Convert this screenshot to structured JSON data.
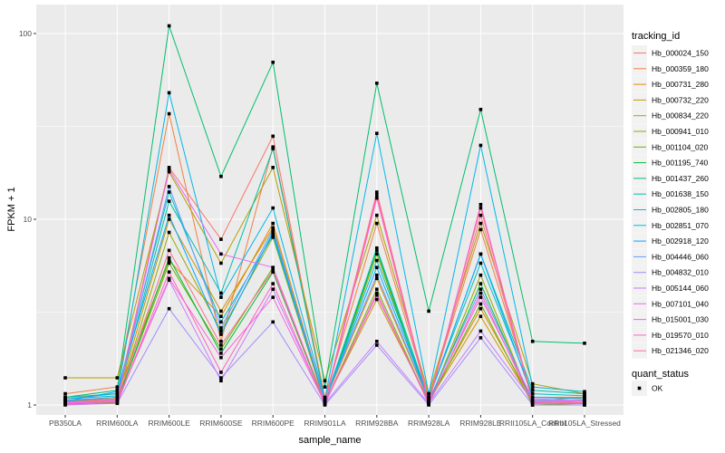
{
  "chart_data": {
    "type": "line",
    "title": "",
    "xlabel": "sample_name",
    "ylabel": "FPKM + 1",
    "y_scale": "log10",
    "ylim": [
      0.85,
      120
    ],
    "y_ticks": [
      1,
      10,
      100
    ],
    "y_tick_labels": [
      "1",
      "10",
      "100"
    ],
    "grid": true,
    "categories": [
      "PB350LA",
      "RRIM600LA",
      "RRIM600LE",
      "RRIM600SE",
      "RRIM600PE",
      "RRIM901LA",
      "RRIM928BA",
      "RRIM928LA",
      "RRIM928LE",
      "RRII105LA_Control",
      "RRII105LA_Stressed"
    ],
    "legend": {
      "title": "tracking_id",
      "placement": "right",
      "shape_legend_title": "quant_status",
      "shape_legend_entries": [
        "OK"
      ]
    },
    "series": [
      {
        "name": "Hb_000024_150",
        "color": "#F8766D",
        "values": [
          1.05,
          1.1,
          19.0,
          7.8,
          28.0,
          1.05,
          13.5,
          1.05,
          11.5,
          1.05,
          1.05
        ]
      },
      {
        "name": "Hb_000359_180",
        "color": "#F07F44",
        "values": [
          1.15,
          1.25,
          37.0,
          2.2,
          24.5,
          1.1,
          9.5,
          1.1,
          8.8,
          1.1,
          1.1
        ]
      },
      {
        "name": "Hb_000731_280",
        "color": "#E18A00",
        "values": [
          1.08,
          1.15,
          6.0,
          3.0,
          9.5,
          1.05,
          4.8,
          1.05,
          3.3,
          1.05,
          1.1
        ]
      },
      {
        "name": "Hb_000732_220",
        "color": "#CC9600",
        "values": [
          1.05,
          1.08,
          10.0,
          3.2,
          9.0,
          1.03,
          3.7,
          1.05,
          3.0,
          1.03,
          1.05
        ]
      },
      {
        "name": "Hb_000834_220",
        "color": "#B39E00",
        "values": [
          1.4,
          1.4,
          18.0,
          5.8,
          19.0,
          1.35,
          10.5,
          1.15,
          9.5,
          1.3,
          1.15
        ]
      },
      {
        "name": "Hb_000941_010",
        "color": "#95A900",
        "values": [
          1.02,
          1.03,
          8.5,
          2.5,
          8.0,
          1.02,
          6.5,
          1.02,
          5.0,
          1.0,
          1.0
        ]
      },
      {
        "name": "Hb_001104_020",
        "color": "#6BB100",
        "values": [
          1.03,
          1.05,
          5.8,
          2.0,
          5.5,
          1.02,
          4.2,
          1.02,
          3.5,
          1.0,
          1.02
        ]
      },
      {
        "name": "Hb_001195_740",
        "color": "#00BA38",
        "values": [
          1.02,
          1.04,
          6.2,
          1.9,
          5.2,
          1.02,
          6.8,
          1.03,
          4.5,
          1.02,
          1.02
        ]
      },
      {
        "name": "Hb_001437_260",
        "color": "#00BE6C",
        "values": [
          1.1,
          1.2,
          110.0,
          17.0,
          70.0,
          1.25,
          54.0,
          3.2,
          39.0,
          2.2,
          2.15
        ]
      },
      {
        "name": "Hb_001638_150",
        "color": "#00C0AB",
        "values": [
          1.05,
          1.1,
          12.5,
          4.0,
          24.0,
          1.05,
          7.0,
          1.08,
          6.5,
          1.2,
          1.15
        ]
      },
      {
        "name": "Hb_002805_180",
        "color": "#00BFC4",
        "values": [
          1.1,
          1.15,
          14.0,
          2.8,
          8.2,
          1.05,
          6.0,
          1.1,
          5.8,
          1.15,
          1.12
        ]
      },
      {
        "name": "Hb_002851_070",
        "color": "#00B8E7",
        "values": [
          1.08,
          1.12,
          48.0,
          3.8,
          11.5,
          1.08,
          29.0,
          1.15,
          25.0,
          1.25,
          1.18
        ]
      },
      {
        "name": "Hb_002918_120",
        "color": "#00A9FF",
        "values": [
          1.05,
          1.18,
          10.5,
          2.4,
          8.5,
          1.05,
          5.5,
          1.08,
          6.5,
          1.1,
          1.08
        ]
      },
      {
        "name": "Hb_004446_060",
        "color": "#619CFF",
        "values": [
          1.06,
          1.1,
          15.0,
          2.6,
          8.8,
          1.06,
          5.0,
          1.06,
          4.2,
          1.06,
          1.06
        ]
      },
      {
        "name": "Hb_004832_010",
        "color": "#A58AFF",
        "values": [
          1.0,
          1.02,
          3.3,
          1.4,
          2.8,
          1.0,
          2.1,
          1.0,
          2.3,
          1.0,
          1.0
        ]
      },
      {
        "name": "Hb_005144_060",
        "color": "#C77CFF",
        "values": [
          1.02,
          1.05,
          4.7,
          1.35,
          4.2,
          1.02,
          2.2,
          1.02,
          2.5,
          1.05,
          1.05
        ]
      },
      {
        "name": "Hb_007101_040",
        "color": "#E76BF3",
        "values": [
          1.03,
          1.06,
          18.5,
          6.5,
          5.5,
          1.03,
          3.9,
          1.03,
          3.8,
          1.08,
          1.05
        ]
      },
      {
        "name": "Hb_015001_030",
        "color": "#FA62DB",
        "values": [
          1.02,
          1.04,
          4.8,
          1.8,
          3.8,
          1.02,
          13.0,
          1.02,
          12.0,
          1.03,
          1.05
        ]
      },
      {
        "name": "Hb_019570_010",
        "color": "#FF62BC",
        "values": [
          1.01,
          1.02,
          5.2,
          1.5,
          4.5,
          1.01,
          4.0,
          1.01,
          4.0,
          1.02,
          1.02
        ]
      },
      {
        "name": "Hb_021346_020",
        "color": "#FF6C91",
        "values": [
          1.04,
          1.07,
          6.8,
          2.1,
          5.3,
          1.04,
          14.0,
          1.04,
          10.5,
          1.04,
          1.03
        ]
      }
    ]
  }
}
